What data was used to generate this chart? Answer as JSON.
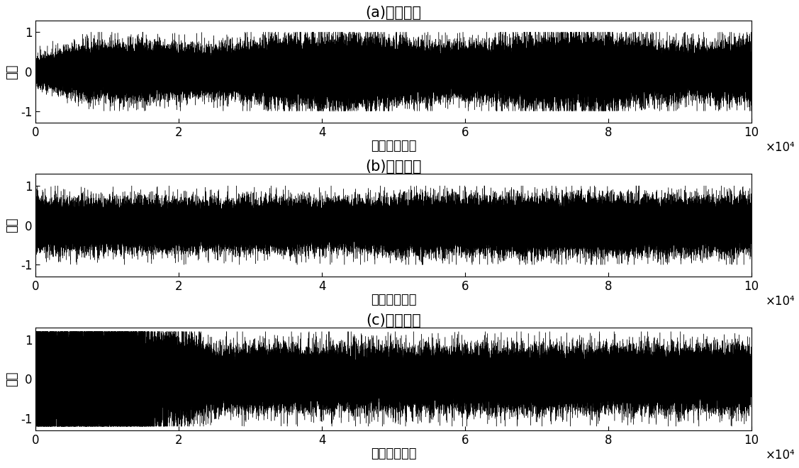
{
  "titles": [
    "(a)滚珠故障",
    "(b)外圈故障",
    "(c)内圈故障"
  ],
  "xlabel": "采样点（个）",
  "ylabel": "幅值",
  "xlim": [
    0,
    100000
  ],
  "ylim": [
    -1.3,
    1.3
  ],
  "yticks": [
    -1,
    0,
    1
  ],
  "xticks": [
    0,
    20000,
    40000,
    60000,
    80000,
    100000
  ],
  "xticklabels": [
    "0",
    "2",
    "4",
    "6",
    "8",
    "10"
  ],
  "x_scale_label": "×10⁴",
  "n_points": 100000,
  "background_color": "#ffffff",
  "line_color": "#000000",
  "line_width": 0.3,
  "title_fontsize": 15,
  "label_fontsize": 13,
  "tick_fontsize": 12,
  "signal_a_scale": 0.25,
  "signal_b_scale": 0.28,
  "signal_c_scale": 0.32,
  "seeds": [
    1,
    2,
    3
  ]
}
